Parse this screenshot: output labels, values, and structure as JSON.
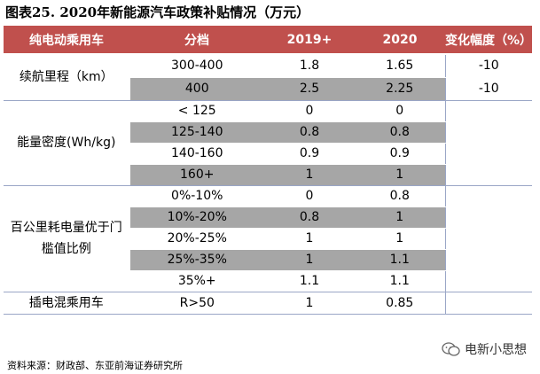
{
  "title": "图表25. 2020年新能源汽车政策补贴情况（万元）",
  "table": {
    "headers": [
      "纯电动乘用车",
      "分档",
      "2019+",
      "2020",
      "变化幅度（%）"
    ],
    "groups": [
      {
        "category": "续航里程（km）",
        "rows": [
          {
            "tier": "300-400",
            "y2019": "1.8",
            "y2020": "1.65",
            "change": "-10"
          },
          {
            "tier": "400",
            "y2019": "2.5",
            "y2020": "2.25",
            "change": "-10"
          }
        ]
      },
      {
        "category": "能量密度(Wh/kg)",
        "rows": [
          {
            "tier": "< 125",
            "y2019": "0",
            "y2020": "0",
            "change": ""
          },
          {
            "tier": "125-140",
            "y2019": "0.8",
            "y2020": "0.8",
            "change": ""
          },
          {
            "tier": "140-160",
            "y2019": "0.9",
            "y2020": "0.9",
            "change": ""
          },
          {
            "tier": "160+",
            "y2019": "1",
            "y2020": "1",
            "change": ""
          }
        ]
      },
      {
        "category": "百公里耗电量优于门槛值比例",
        "rows": [
          {
            "tier": "0%-10%",
            "y2019": "0",
            "y2020": "0.8",
            "change": ""
          },
          {
            "tier": "10%-20%",
            "y2019": "0.8",
            "y2020": "1",
            "change": ""
          },
          {
            "tier": "20%-25%",
            "y2019": "1",
            "y2020": "1",
            "change": ""
          },
          {
            "tier": "25%-35%",
            "y2019": "1",
            "y2020": "1.1",
            "change": ""
          },
          {
            "tier": "35%+",
            "y2019": "1.1",
            "y2020": "1.1",
            "change": ""
          }
        ]
      },
      {
        "category": "插电混乘用车",
        "rows": [
          {
            "tier": "R>50",
            "y2019": "1",
            "y2020": "0.85",
            "change": ""
          }
        ]
      }
    ]
  },
  "footer": "资料来源：财政部、东亚前海证券研究所",
  "watermark": "电新小思想",
  "colors": {
    "header": "#c0504d",
    "gray_row": "#a6a6a6",
    "divider": "#9aa6c6"
  }
}
